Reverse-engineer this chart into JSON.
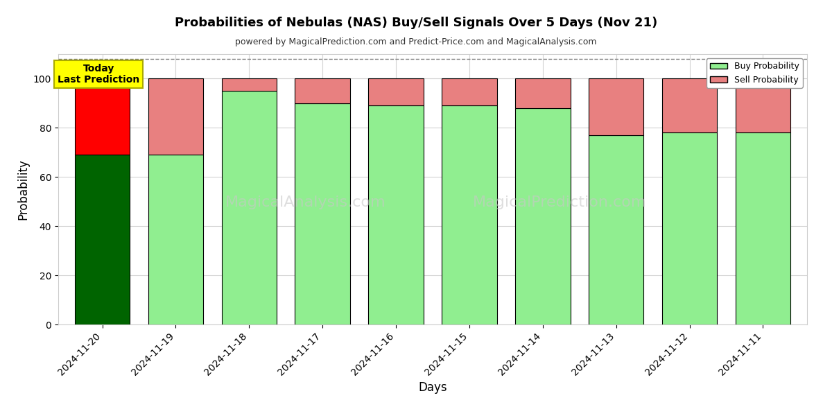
{
  "title": "Probabilities of Nebulas (NAS) Buy/Sell Signals Over 5 Days (Nov 21)",
  "subtitle": "powered by MagicalPrediction.com and Predict-Price.com and MagicalAnalysis.com",
  "xlabel": "Days",
  "ylabel": "Probability",
  "dates": [
    "2024-11-20",
    "2024-11-19",
    "2024-11-18",
    "2024-11-17",
    "2024-11-16",
    "2024-11-15",
    "2024-11-14",
    "2024-11-13",
    "2024-11-12",
    "2024-11-11"
  ],
  "buy_values": [
    69,
    69,
    95,
    90,
    89,
    89,
    88,
    77,
    78,
    78
  ],
  "sell_values": [
    31,
    31,
    5,
    10,
    11,
    11,
    12,
    23,
    22,
    22
  ],
  "buy_colors": [
    "#006400",
    "#90EE90",
    "#90EE90",
    "#90EE90",
    "#90EE90",
    "#90EE90",
    "#90EE90",
    "#90EE90",
    "#90EE90",
    "#90EE90"
  ],
  "sell_colors": [
    "#FF0000",
    "#E88080",
    "#E88080",
    "#E88080",
    "#E88080",
    "#E88080",
    "#E88080",
    "#E88080",
    "#E88080",
    "#E88080"
  ],
  "today_label_text": "Today\nLast Prediction",
  "today_label_bg": "#FFFF00",
  "legend_buy_color": "#90EE90",
  "legend_sell_color": "#E88080",
  "legend_buy_label": "Buy Probability",
  "legend_sell_label": "Sell Probability",
  "ylim": [
    0,
    110
  ],
  "dashed_line_y": 108,
  "watermark1": "MagicalAnalysis.com",
  "watermark2": "MagicalPrediction.com",
  "bar_edge_color": "#000000",
  "bar_linewidth": 0.8,
  "figsize": [
    12.0,
    6.0
  ],
  "dpi": 100
}
